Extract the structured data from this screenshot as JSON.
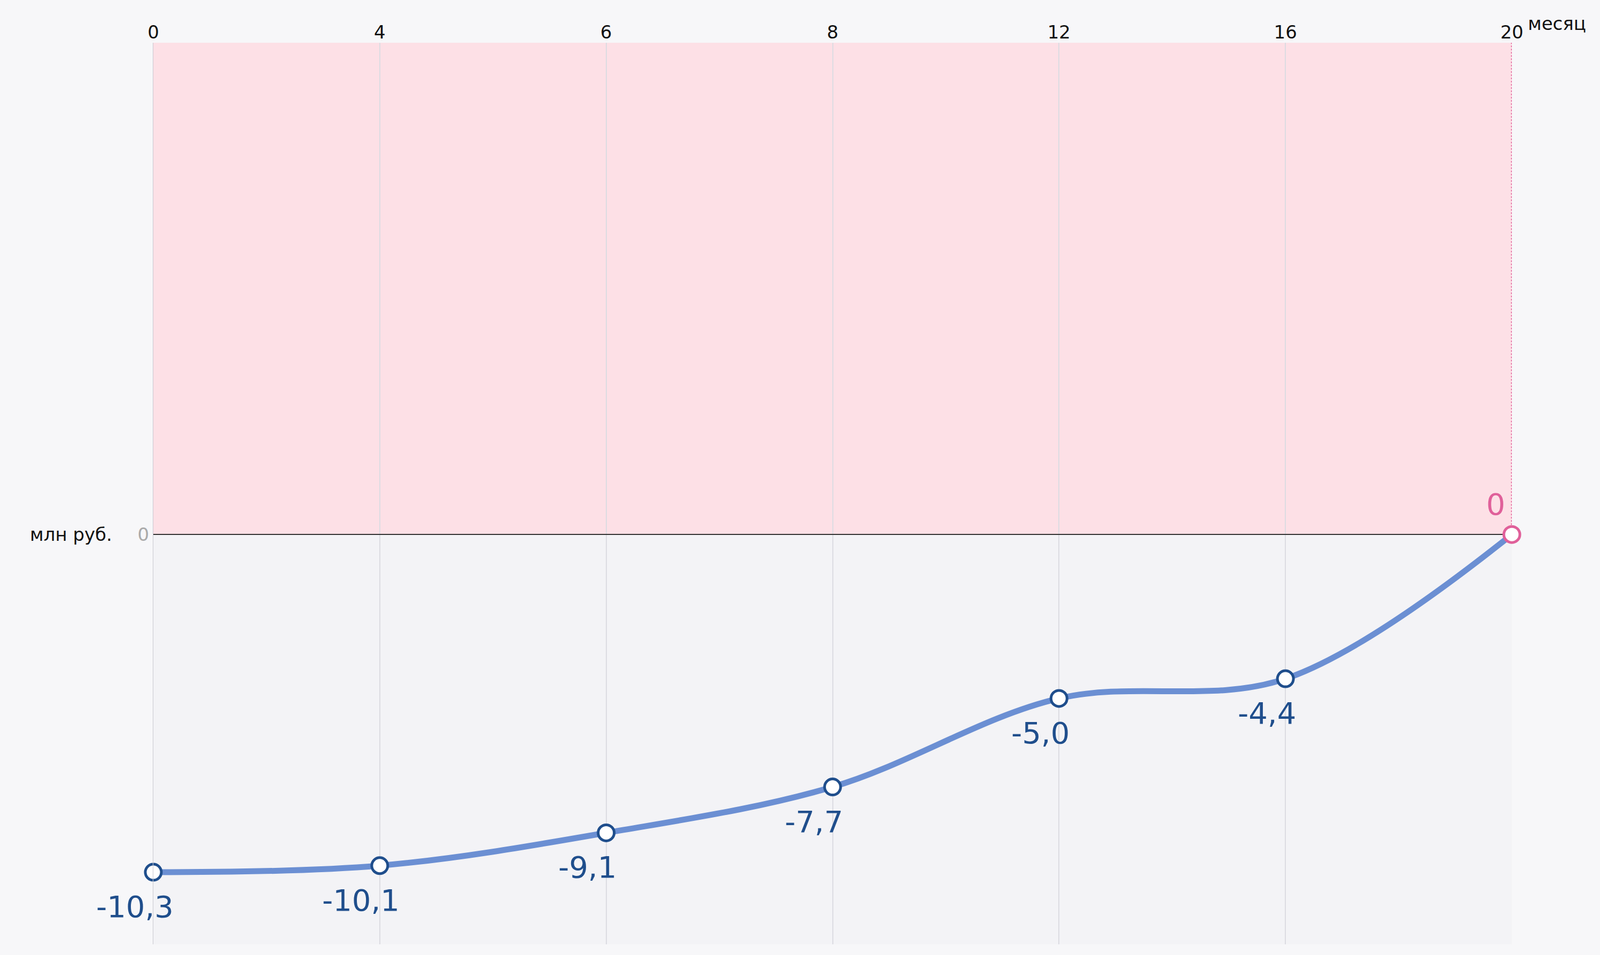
{
  "chart_data": {
    "type": "line",
    "categories": [
      "0",
      "4",
      "6",
      "8",
      "12",
      "16",
      "20"
    ],
    "x_label": "месяц",
    "y_label": "млн руб.",
    "values": [
      -10.3,
      -10.1,
      -9.1,
      -7.7,
      -5.0,
      -4.4,
      0
    ],
    "value_labels": [
      "-10,3",
      "-10,1",
      "-9,1",
      "-7,7",
      "-5,0",
      "-4,4",
      "0"
    ],
    "color": "#6b8fd3",
    "colors": [
      "#1f4e8c",
      "#1f4e8c",
      "#1f4e8c",
      "#1f4e8c",
      "#1f4e8c",
      "#1f4e8c",
      "#e0609a"
    ],
    "ylim": [
      -12.5,
      15
    ],
    "yticks": [
      0
    ],
    "grid": true,
    "data_labels": true,
    "marker": "circle",
    "line_style": "spline"
  }
}
